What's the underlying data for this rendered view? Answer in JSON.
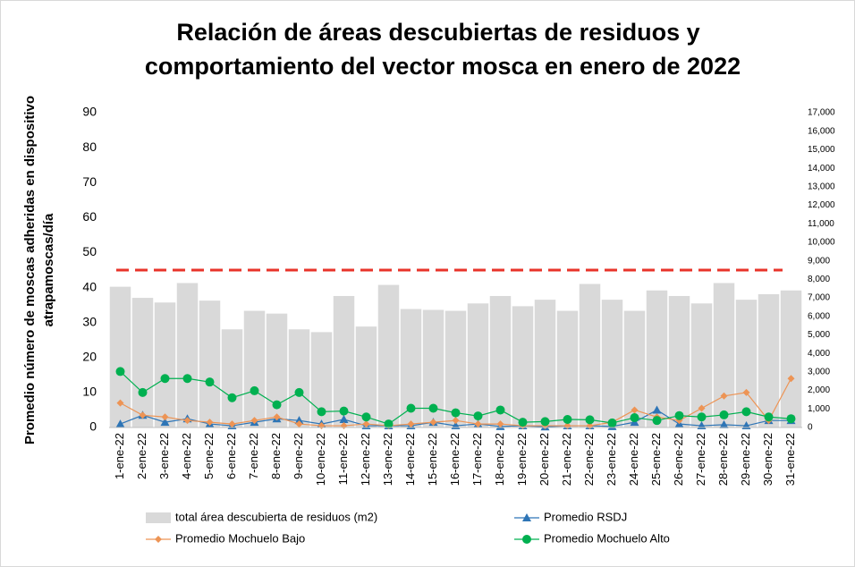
{
  "chart_data": {
    "type": "bar_line",
    "title": [
      "Relación de áreas descubiertas de residuos y",
      "comportamiento del vector mosca en enero de 2022"
    ],
    "y_label": [
      "Promedio número de moscas adheridas en dispositivo",
      "atrapamoscas/día"
    ],
    "categories": [
      "1-ene-22",
      "2-ene-22",
      "3-ene-22",
      "4-ene-22",
      "5-ene-22",
      "6-ene-22",
      "7-ene-22",
      "8-ene-22",
      "9-ene-22",
      "10-ene-22",
      "11-ene-22",
      "12-ene-22",
      "13-ene-22",
      "14-ene-22",
      "15-ene-22",
      "16-ene-22",
      "17-ene-22",
      "18-ene-22",
      "19-ene-22",
      "20-ene-22",
      "21-ene-22",
      "22-ene-22",
      "23-ene-22",
      "24-ene-22",
      "25-ene-22",
      "26-ene-22",
      "27-ene-22",
      "28-ene-22",
      "29-ene-22",
      "30-ene-22",
      "31-ene-22"
    ],
    "series": [
      {
        "name": "total área descubierta de residuos (m2)",
        "kind": "bar",
        "axis": "y2",
        "color": "#d9d9d9",
        "values": [
          7600,
          7000,
          6750,
          7800,
          6850,
          5300,
          6300,
          6150,
          5300,
          5150,
          7100,
          5450,
          7700,
          6400,
          6350,
          6300,
          6700,
          7100,
          6550,
          6900,
          6300,
          7750,
          6900,
          6300,
          7400,
          7100,
          6700,
          7800,
          6900,
          7200,
          7400
        ]
      },
      {
        "name": "Promedio RSDJ",
        "kind": "line",
        "marker": "triangle",
        "color": "#2e75b6",
        "values": [
          1,
          3.5,
          1.5,
          2.5,
          1,
          0.5,
          1.5,
          2.5,
          2,
          1,
          2.3,
          0.5,
          0.5,
          0.5,
          1.5,
          0.5,
          1,
          0.3,
          0.5,
          0.2,
          0.5,
          0.5,
          0.3,
          1.5,
          5,
          1,
          0.5,
          0.8,
          0.5,
          2,
          2
        ]
      },
      {
        "name": "Promedio Mochuelo Bajo",
        "kind": "line",
        "marker": "diamond",
        "color": "#ed9455",
        "values": [
          7,
          3.5,
          3,
          2,
          1.5,
          1,
          2,
          3,
          1,
          0.5,
          0.5,
          1,
          0.5,
          1,
          1.5,
          2,
          1,
          1,
          0.5,
          0.5,
          0.5,
          0.5,
          1.5,
          5,
          3,
          2,
          5.5,
          9,
          10,
          2,
          14
        ]
      },
      {
        "name": "Promedio Mochuelo Alto",
        "kind": "line",
        "marker": "circle",
        "color": "#00b050",
        "values": [
          16,
          10,
          14,
          14,
          13,
          8.5,
          10.5,
          6.5,
          10,
          4.5,
          4.7,
          3,
          1,
          5.5,
          5.5,
          4.2,
          3.3,
          5,
          1.5,
          1.7,
          2.3,
          2.2,
          1.3,
          2.8,
          2,
          3.4,
          3,
          3.6,
          4.5,
          3,
          2.5
        ]
      }
    ],
    "reference_line": {
      "value": 45,
      "color": "#e8332a"
    },
    "ylim": [
      0,
      90
    ],
    "yticks": [
      0,
      10,
      20,
      30,
      40,
      50,
      60,
      70,
      80,
      90
    ],
    "y2lim": [
      0,
      17000
    ],
    "y2ticks": [
      0,
      {
        "value": 1000,
        "label": "1,000"
      },
      {
        "value": 2000,
        "label": "2,000"
      },
      {
        "value": 3000,
        "label": "3,000"
      },
      {
        "value": 4000,
        "label": "4,000"
      },
      {
        "value": 5000,
        "label": "5,000"
      },
      {
        "value": 6000,
        "label": "6,000"
      },
      {
        "value": 7000,
        "label": "7,000"
      },
      {
        "value": 8000,
        "label": "8,000"
      },
      {
        "value": 9000,
        "label": "9,000"
      },
      {
        "value": 10000,
        "label": "10,000"
      },
      {
        "value": 11000,
        "label": "11,000"
      },
      {
        "value": 12000,
        "label": "12,000"
      },
      {
        "value": 13000,
        "label": "13,000"
      },
      {
        "value": 14000,
        "label": "14,000"
      },
      {
        "value": 15000,
        "label": "15,000"
      },
      {
        "value": 16000,
        "label": "16,000"
      },
      {
        "value": 17000,
        "label": "17,000"
      }
    ],
    "grid": false
  }
}
